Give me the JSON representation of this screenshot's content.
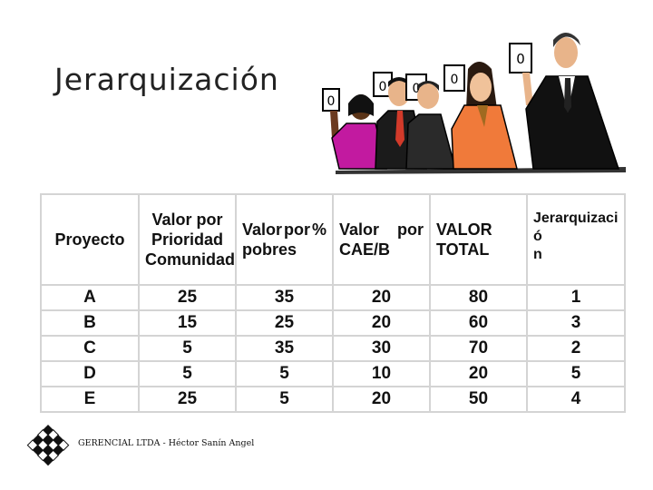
{
  "slide": {
    "title": "Jerarquización",
    "footer": "GERENCIAL LTDA - Héctor Sanín Angel"
  },
  "table": {
    "headers": {
      "proyecto": "Proyecto",
      "prioridad_1": "Valor por",
      "prioridad_2": "Prioridad",
      "prioridad_3": "Comunidad",
      "pobres_a": "Valor",
      "pobres_b": "por",
      "pobres_c": "%",
      "pobres_2": "pobres",
      "cae_a": "Valor",
      "cae_b": "por",
      "cae_2": "CAE/B",
      "total_1": "VALOR",
      "total_2": "TOTAL",
      "jerarquizacion_1": "Jerarquizació",
      "jerarquizacion_2": "n"
    },
    "rows": [
      [
        "A",
        "25",
        "35",
        "20",
        "80",
        "1"
      ],
      [
        "B",
        "15",
        "25",
        "20",
        "60",
        "3"
      ],
      [
        "C",
        "5",
        "35",
        "30",
        "70",
        "2"
      ],
      [
        "D",
        "5",
        "5",
        "10",
        "20",
        "5"
      ],
      [
        "E",
        "25",
        "5",
        "20",
        "50",
        "4"
      ]
    ]
  },
  "illustration": {
    "icon": "people-holding-score-cards-icon",
    "score_cards": [
      "0",
      "0",
      "0",
      "0",
      "0"
    ]
  },
  "logo": {
    "icon": "diamond-grid-logo-icon"
  }
}
